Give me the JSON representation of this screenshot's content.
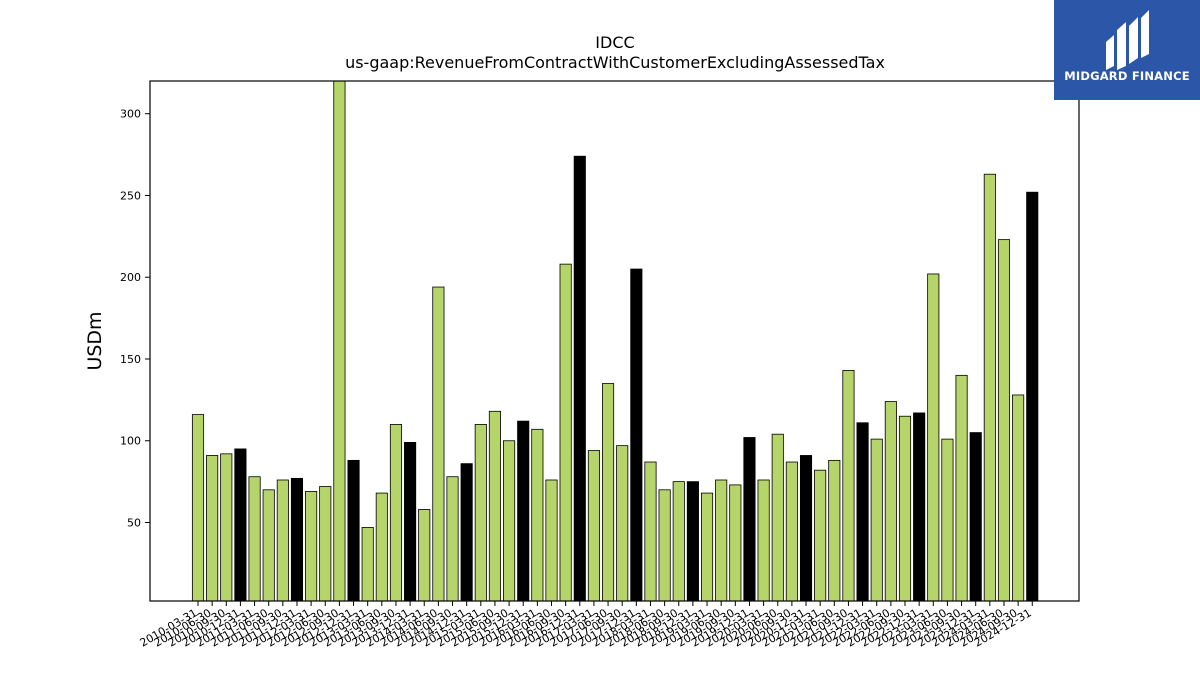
{
  "chart_data": {
    "type": "bar",
    "title": "IDCC",
    "subtitle": "us-gaap:RevenueFromContractWithCustomerExcludingAssessedTax",
    "xlabel": "",
    "ylabel": "USDm",
    "ylim": [
      2,
      320
    ],
    "yticks": [
      50,
      100,
      150,
      200,
      250,
      300
    ],
    "grid": false,
    "colors": {
      "quarter": "#b5d46a",
      "fiscal_year": "#000000"
    },
    "categories": [
      "2010-03-31",
      "2010-06-30",
      "2010-09-30",
      "2010-12-31",
      "2011-03-31",
      "2011-06-30",
      "2011-09-30",
      "2011-12-31",
      "2012-03-31",
      "2012-06-30",
      "2012-09-30",
      "2012-12-31",
      "2013-03-31",
      "2013-06-30",
      "2013-09-30",
      "2013-12-31",
      "2014-03-31",
      "2014-06-30",
      "2014-09-30",
      "2014-12-31",
      "2015-03-31",
      "2015-06-30",
      "2015-09-30",
      "2015-12-31",
      "2016-03-31",
      "2016-06-30",
      "2016-09-30",
      "2016-12-31",
      "2017-03-31",
      "2017-06-30",
      "2017-09-30",
      "2017-12-31",
      "2018-03-31",
      "2018-06-30",
      "2018-09-30",
      "2018-12-31",
      "2019-03-31",
      "2019-06-30",
      "2019-09-30",
      "2019-12-31",
      "2020-03-31",
      "2020-06-30",
      "2020-09-30",
      "2020-12-31",
      "2021-03-31",
      "2021-06-30",
      "2021-09-30",
      "2021-12-31",
      "2022-03-31",
      "2022-06-30",
      "2022-09-30",
      "2022-12-31",
      "2023-03-31",
      "2023-06-30",
      "2023-09-30",
      "2023-12-31",
      "2024-03-31",
      "2024-06-30",
      "2024-09-30",
      "2024-12-31"
    ],
    "values": [
      116,
      91,
      92,
      95,
      78,
      70,
      76,
      77,
      69,
      72,
      320,
      88,
      47,
      68,
      110,
      99,
      58,
      194,
      78,
      86,
      110,
      118,
      100,
      112,
      107,
      76,
      208,
      274,
      94,
      135,
      97,
      205,
      87,
      70,
      75,
      75,
      68,
      76,
      73,
      102,
      76,
      104,
      87,
      91,
      82,
      88,
      143,
      111,
      101,
      124,
      115,
      117,
      202,
      101,
      140,
      105,
      263,
      223,
      128,
      252
    ],
    "fiscal_year_bar": [
      false,
      false,
      false,
      true,
      false,
      false,
      false,
      true,
      false,
      false,
      false,
      true,
      false,
      false,
      false,
      true,
      false,
      false,
      false,
      true,
      false,
      false,
      false,
      true,
      false,
      false,
      false,
      true,
      false,
      false,
      false,
      true,
      false,
      false,
      false,
      true,
      false,
      false,
      false,
      true,
      false,
      false,
      false,
      true,
      false,
      false,
      false,
      true,
      false,
      false,
      false,
      true,
      false,
      false,
      false,
      true,
      false,
      false,
      false,
      true
    ]
  },
  "logo": {
    "text": "MIDGARD FINANCE"
  }
}
